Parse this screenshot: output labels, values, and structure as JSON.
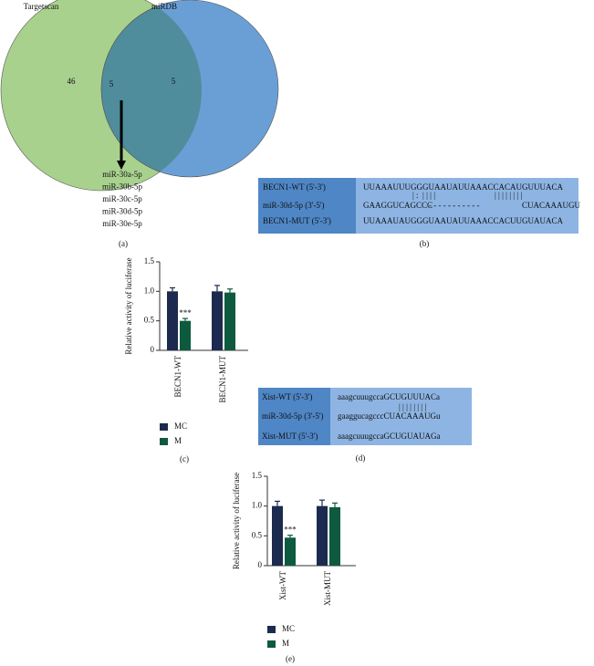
{
  "venn": {
    "sets": [
      {
        "name": "Targetscan",
        "only": 46,
        "color": "#a9d18e"
      },
      {
        "name": "miRDB",
        "only": 5,
        "color": "#6a9fd6"
      }
    ],
    "overlap": 5,
    "overlap_color": "#4f8d9c",
    "mirnas": [
      "miR-30a-5p",
      "miR-30b-5p",
      "miR-30c-5p",
      "miR-30d-5p",
      "miR-30e-5p"
    ],
    "panel": "(a)"
  },
  "sequence_b": {
    "labels": [
      "BECN1-WT (5'-3')",
      "miR-30d-5p (3'-5')",
      "BECN1-MUT (5'-3')"
    ],
    "wt": "UUAAAUUUGGGUAAUAUUAAACCACAUGUUUACA",
    "pairs": [
      "| :  | | | |",
      "| | | | | | | |"
    ],
    "mir": [
      "GAAGGUCAGCCC",
      "- - - - - - - - - - -",
      "CUACAAAUGU"
    ],
    "mut": "UUAAAUAUGGGUAAUAUUAAACCACUUGUAUACA",
    "panel": "(b)"
  },
  "sequence_d": {
    "labels": [
      "Xist-WT (5'-3')",
      "miR-30d-5p (3'-5')",
      "Xist-MUT (5'-3')"
    ],
    "wt": "aaagcuuugccaGCUGUUUACa",
    "pairs": "| | | | | | | |",
    "mir": "gaaggucagcccCUACAAAUGu",
    "mut": "aaagcuuugccaGCUGUAUAGa",
    "panel": "(d)"
  },
  "chart_data": [
    {
      "type": "bar",
      "y_label": "Relative activity of luciferase",
      "categories": [
        "BECN1-WT",
        "BECN1-MUT"
      ],
      "series": [
        {
          "name": "MC",
          "color": "#1b2a4e",
          "values": [
            1.0,
            1.0
          ],
          "error": [
            0.06,
            0.1
          ]
        },
        {
          "name": "M",
          "color": "#0e5a3e",
          "values": [
            0.5,
            0.98
          ],
          "error": [
            0.04,
            0.06
          ]
        }
      ],
      "ylim": [
        0,
        1.5
      ],
      "yticks": [
        0,
        0.5,
        {
          "value": 1,
          "label": "1.0"
        },
        1.5
      ],
      "annotations": [
        {
          "text": "***",
          "category": "BECN1-WT",
          "series": "M"
        }
      ],
      "panel": "(c)"
    },
    {
      "type": "bar",
      "y_label": "Relative activity of luciferase",
      "categories": [
        "Xist-WT",
        "Xist-MUT"
      ],
      "series": [
        {
          "name": "MC",
          "color": "#1b2a4e",
          "values": [
            1.0,
            1.0
          ],
          "error": [
            0.08,
            0.1
          ]
        },
        {
          "name": "M",
          "color": "#0e5a3e",
          "values": [
            0.47,
            0.98
          ],
          "error": [
            0.04,
            0.07
          ]
        }
      ],
      "ylim": [
        0,
        1.5
      ],
      "yticks": [
        0,
        0.5,
        {
          "value": 1,
          "label": "1.0"
        },
        1.5
      ],
      "annotations": [
        {
          "text": "***",
          "category": "Xist-WT",
          "series": "M"
        }
      ],
      "panel": "(e)"
    }
  ]
}
